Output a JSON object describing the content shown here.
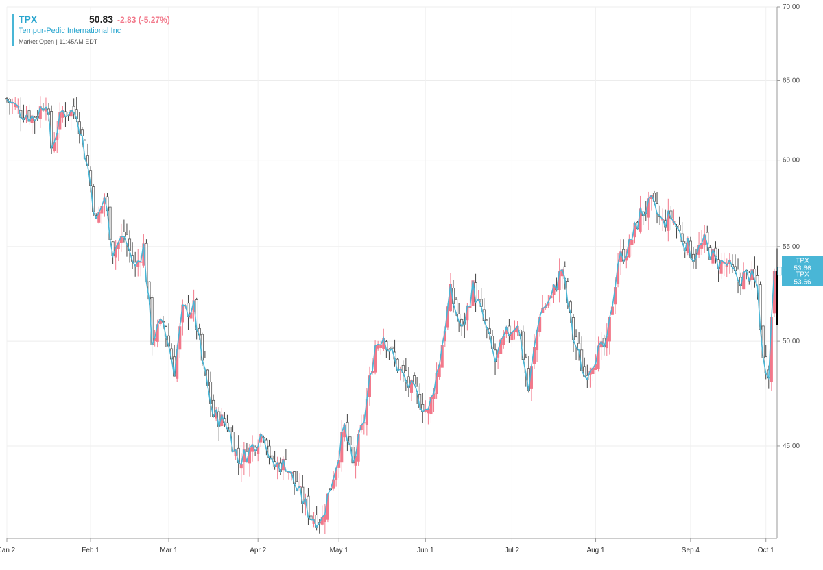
{
  "header": {
    "symbol": "TPX",
    "last": "50.83",
    "change": "-2.83 (-5.27%)",
    "company": "Tempur-Pedic International Inc",
    "status": "Market Open | 11:45AM EDT"
  },
  "price_tags": [
    {
      "line1": "TPX",
      "line2": "53.66"
    },
    {
      "line1": "TPX",
      "line2": "53.66"
    }
  ],
  "colors": {
    "up": "#f2788a",
    "down_hollow": "#ffffff",
    "accent": "#49b6d6",
    "last_bar": "#000000"
  },
  "chart_data": {
    "type": "candlestick",
    "y_scale": "log",
    "ylim": [
      41.0,
      70.0
    ],
    "yticks": [
      45,
      50,
      55,
      60,
      65,
      70
    ],
    "ytick_labels": [
      "45.00",
      "50.00",
      "55.00",
      "60.00",
      "65.00",
      "70.00"
    ],
    "xticks": [
      {
        "label": "Jan 2",
        "day": 0
      },
      {
        "label": "Feb 1",
        "day": 30
      },
      {
        "label": "Mar 1",
        "day": 58
      },
      {
        "label": "Apr 2",
        "day": 90
      },
      {
        "label": "May 1",
        "day": 119
      },
      {
        "label": "Jun 1",
        "day": 150
      },
      {
        "label": "Jul 2",
        "day": 181
      },
      {
        "label": "Aug 1",
        "day": 211
      },
      {
        "label": "Sep 4",
        "day": 245
      },
      {
        "label": "Oct 1",
        "day": 272
      }
    ],
    "x_range_days": [
      0,
      276
    ],
    "anchors": [
      [
        0,
        63.8
      ],
      [
        5,
        63.0
      ],
      [
        10,
        62.6
      ],
      [
        14,
        63.8
      ],
      [
        16,
        60.8
      ],
      [
        20,
        63.0
      ],
      [
        25,
        63.0
      ],
      [
        29,
        59.6
      ],
      [
        32,
        56.3
      ],
      [
        35,
        57.8
      ],
      [
        38,
        54.8
      ],
      [
        42,
        55.6
      ],
      [
        46,
        53.8
      ],
      [
        49,
        55.0
      ],
      [
        52,
        50.1
      ],
      [
        56,
        51.0
      ],
      [
        60,
        48.6
      ],
      [
        63,
        51.5
      ],
      [
        67,
        51.7
      ],
      [
        70,
        49.0
      ],
      [
        74,
        46.4
      ],
      [
        79,
        46.0
      ],
      [
        83,
        44.3
      ],
      [
        87,
        44.8
      ],
      [
        92,
        45.7
      ],
      [
        95,
        44.1
      ],
      [
        100,
        44.2
      ],
      [
        104,
        43.1
      ],
      [
        109,
        41.9
      ],
      [
        113,
        41.8
      ],
      [
        118,
        44.2
      ],
      [
        121,
        45.8
      ],
      [
        124,
        44.1
      ],
      [
        128,
        46.2
      ],
      [
        132,
        49.8
      ],
      [
        135,
        50.3
      ],
      [
        139,
        49.0
      ],
      [
        143,
        48.0
      ],
      [
        147,
        47.3
      ],
      [
        151,
        46.5
      ],
      [
        155,
        49.0
      ],
      [
        159,
        52.5
      ],
      [
        163,
        50.5
      ],
      [
        167,
        52.8
      ],
      [
        171,
        51.0
      ],
      [
        175,
        49.0
      ],
      [
        179,
        50.3
      ],
      [
        183,
        51.0
      ],
      [
        187,
        47.6
      ],
      [
        191,
        51.5
      ],
      [
        195,
        52.2
      ],
      [
        199,
        53.8
      ],
      [
        203,
        50.2
      ],
      [
        207,
        48.3
      ],
      [
        211,
        49.3
      ],
      [
        215,
        49.8
      ],
      [
        219,
        54.2
      ],
      [
        223,
        55.0
      ],
      [
        227,
        56.8
      ],
      [
        231,
        57.4
      ],
      [
        235,
        56.3
      ],
      [
        238,
        56.7
      ],
      [
        242,
        55.5
      ],
      [
        246,
        54.5
      ],
      [
        250,
        55.2
      ],
      [
        254,
        54.2
      ],
      [
        258,
        54.0
      ],
      [
        262,
        53.2
      ],
      [
        266,
        53.5
      ],
      [
        269,
        52.8
      ],
      [
        271,
        49.0
      ],
      [
        273,
        48.6
      ],
      [
        275,
        53.66
      ]
    ],
    "last_bar": {
      "day": 276,
      "open": 53.66,
      "high": 54.9,
      "low": 52.6,
      "close": 50.83
    }
  }
}
